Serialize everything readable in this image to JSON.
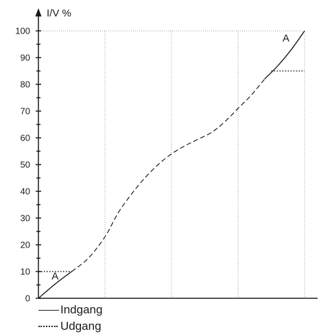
{
  "chart_data": {
    "type": "line",
    "ylabel": "I/V %",
    "ylim": [
      0,
      100
    ],
    "yticks": [
      0,
      10,
      20,
      30,
      40,
      50,
      60,
      70,
      80,
      90,
      100
    ],
    "xlim": [
      0,
      4
    ],
    "x_gridlines": [
      1,
      2,
      3,
      4
    ],
    "grid": true,
    "series": [
      {
        "name": "Indgang",
        "x": [
          0,
          0.26,
          0.5,
          0.75,
          1.0,
          1.2,
          1.4,
          1.6,
          1.8,
          2.0,
          2.2,
          2.4,
          2.6,
          2.8,
          3.0,
          3.2,
          3.4,
          3.6,
          3.8,
          4.0
        ],
        "values": [
          0,
          5.5,
          10,
          15,
          23,
          32,
          39,
          45,
          50,
          54,
          57,
          59.5,
          62,
          66,
          71,
          76,
          82,
          87,
          93,
          100
        ]
      }
    ],
    "reference_lines": [
      {
        "y": 10,
        "x_from": 0,
        "x_to": 0.5
      },
      {
        "y": 85,
        "x_from": 3.5,
        "x_to": 4
      }
    ],
    "annotations": [
      {
        "text": "A",
        "x": 0.25,
        "y": 7
      },
      {
        "text": "A",
        "x": 3.72,
        "y": 96
      }
    ]
  },
  "legend": {
    "solid": "Indgang",
    "dotted": "Udgang"
  }
}
